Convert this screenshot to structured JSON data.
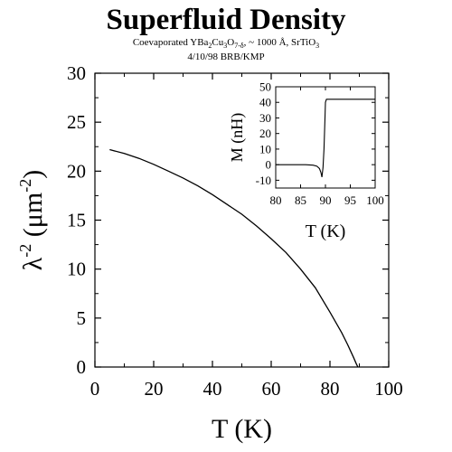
{
  "title": "Superfluid Density",
  "subtitle_parts": [
    {
      "t": "Coevaporated YBa",
      "sub": false
    },
    {
      "t": "2",
      "sub": true
    },
    {
      "t": "Cu",
      "sub": false
    },
    {
      "t": "3",
      "sub": true
    },
    {
      "t": "O",
      "sub": false
    },
    {
      "t": "7-δ",
      "sub": true
    },
    {
      "t": ",  ~ 1000 Å,  SrTiO",
      "sub": false
    },
    {
      "t": "3",
      "sub": true
    }
  ],
  "subtitle2": "4/10/98   BRB/KMP",
  "chart_data": [
    {
      "type": "line",
      "xlabel": "T (K)",
      "ylabel_base": "λ",
      "ylabel_sup": "-2",
      "ylabel_unit": " (μm",
      "ylabel_unit_sup": "-2",
      "ylabel_close": ")",
      "xlim": [
        0,
        100
      ],
      "ylim": [
        0,
        30
      ],
      "xticks": [
        0,
        20,
        40,
        60,
        80,
        100
      ],
      "yticks": [
        0,
        5,
        10,
        15,
        20,
        25,
        30
      ],
      "grid": false,
      "series": [
        {
          "x": [
            5,
            10,
            15,
            20,
            25,
            30,
            35,
            40,
            45,
            50,
            55,
            60,
            65,
            70,
            75,
            80,
            84,
            86,
            88,
            89,
            89.5
          ],
          "y": [
            22.2,
            21.8,
            21.3,
            20.7,
            20.0,
            19.3,
            18.5,
            17.6,
            16.6,
            15.6,
            14.4,
            13.1,
            11.7,
            10.0,
            8.1,
            5.6,
            3.5,
            2.3,
            1.0,
            0.3,
            0
          ]
        }
      ]
    },
    {
      "type": "line",
      "xlabel": "T (K)",
      "ylabel": "M (nH)",
      "xlim": [
        80,
        100
      ],
      "ylim": [
        -15,
        50
      ],
      "xticks": [
        80,
        85,
        90,
        95,
        100
      ],
      "yticks": [
        -10,
        0,
        10,
        20,
        30,
        40,
        50
      ],
      "grid": false,
      "series": [
        {
          "x": [
            80,
            86,
            87.5,
            88.3,
            88.8,
            89.1,
            89.3,
            89.5,
            89.7,
            89.9,
            90.0,
            90.2,
            90.5,
            91,
            100
          ],
          "y": [
            0,
            0,
            -0.3,
            -1,
            -2.5,
            -5,
            -8,
            -2,
            10,
            30,
            40,
            42,
            42,
            42,
            42
          ]
        }
      ]
    }
  ]
}
